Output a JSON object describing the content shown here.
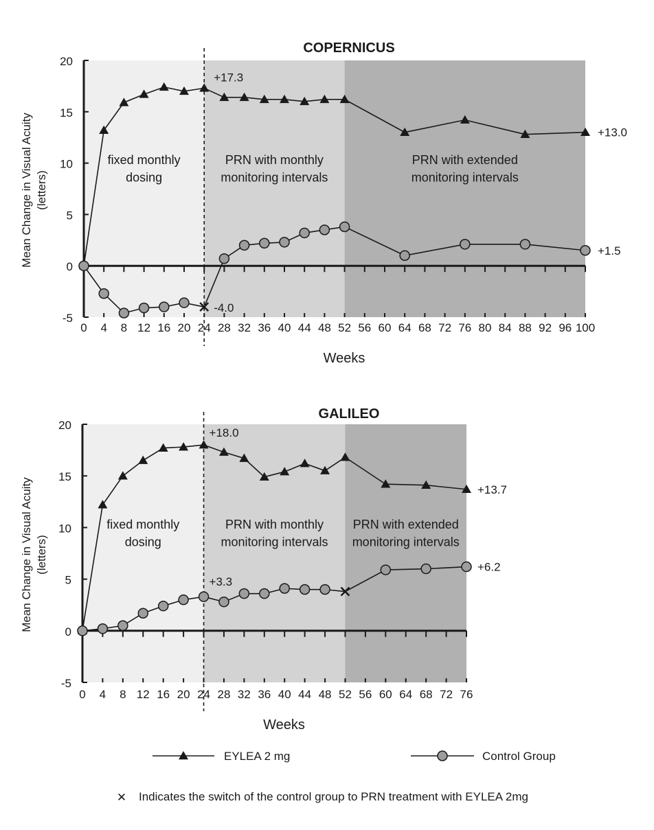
{
  "chart_data": [
    {
      "type": "line",
      "title": "COPERNICUS",
      "xlabel": "Weeks",
      "ylabel": "Mean Change in Visual Acuity",
      "ylabel_unit": "(letters)",
      "xlim": [
        0,
        100
      ],
      "ylim": [
        -5,
        20
      ],
      "yticks": [
        20,
        15,
        10,
        5,
        0,
        -5
      ],
      "xticks": [
        0,
        4,
        8,
        12,
        16,
        20,
        24,
        28,
        32,
        36,
        40,
        44,
        48,
        52,
        56,
        60,
        64,
        68,
        72,
        76,
        80,
        84,
        88,
        92,
        96,
        100
      ],
      "regions": [
        {
          "x0": 0,
          "x1": 24,
          "line1": "fixed monthly",
          "line2": "dosing",
          "color": "#efefef"
        },
        {
          "x0": 24,
          "x1": 52,
          "line1": "PRN with monthly",
          "line2": "monitoring intervals",
          "color": "#d3d3d3"
        },
        {
          "x0": 52,
          "x1": 100,
          "line1": "PRN with extended",
          "line2": "monitoring intervals",
          "color": "#b1b1b1"
        }
      ],
      "switch_week": 24,
      "series": [
        {
          "name": "EYLEA 2 mg",
          "marker": "triangle",
          "x": [
            0,
            4,
            8,
            12,
            16,
            20,
            24,
            28,
            32,
            36,
            40,
            44,
            48,
            52,
            64,
            76,
            88,
            100
          ],
          "values": [
            0,
            13.2,
            15.9,
            16.7,
            17.4,
            17.0,
            17.3,
            16.4,
            16.4,
            16.2,
            16.2,
            16.0,
            16.2,
            16.2,
            13.0,
            14.2,
            12.8,
            13.0
          ]
        },
        {
          "name": "Control Group",
          "marker": "circle",
          "x": [
            0,
            4,
            8,
            12,
            16,
            20,
            24,
            28,
            32,
            36,
            40,
            44,
            48,
            52,
            64,
            76,
            88,
            100
          ],
          "values": [
            0,
            -2.7,
            -4.6,
            -4.1,
            -4.0,
            -3.6,
            -4.0,
            0.7,
            2.0,
            2.2,
            2.3,
            3.2,
            3.5,
            3.8,
            1.0,
            2.1,
            2.1,
            1.5
          ]
        }
      ],
      "switch_points": [
        {
          "x": 24,
          "y": -4.0
        }
      ],
      "annotations": [
        {
          "text": "+17.3",
          "x": 24,
          "y": 17.3
        },
        {
          "text": "-4.0",
          "x": 24,
          "y": -4.0
        },
        {
          "text": "+13.0",
          "x": 100,
          "y": 13.0
        },
        {
          "text": "+1.5",
          "x": 100,
          "y": 1.5
        }
      ]
    },
    {
      "type": "line",
      "title": "GALILEO",
      "xlabel": "Weeks",
      "ylabel": "Mean Change in Visual Acuity",
      "ylabel_unit": "(letters)",
      "xlim": [
        0,
        76
      ],
      "ylim": [
        -5,
        20
      ],
      "yticks": [
        20,
        15,
        10,
        5,
        0,
        -5
      ],
      "xticks": [
        0,
        4,
        8,
        12,
        16,
        20,
        24,
        28,
        32,
        36,
        40,
        44,
        48,
        52,
        56,
        60,
        64,
        68,
        72,
        76
      ],
      "regions": [
        {
          "x0": 0,
          "x1": 24,
          "line1": "fixed monthly",
          "line2": "dosing",
          "color": "#efefef"
        },
        {
          "x0": 24,
          "x1": 52,
          "line1": "PRN with monthly",
          "line2": "monitoring intervals",
          "color": "#d3d3d3"
        },
        {
          "x0": 52,
          "x1": 76,
          "line1": "PRN with extended",
          "line2": "monitoring intervals",
          "color": "#b1b1b1"
        }
      ],
      "switch_week": 24,
      "series": [
        {
          "name": "EYLEA 2 mg",
          "marker": "triangle",
          "x": [
            0,
            4,
            8,
            12,
            16,
            20,
            24,
            28,
            32,
            36,
            40,
            44,
            48,
            52,
            60,
            68,
            76
          ],
          "values": [
            0,
            12.2,
            15.0,
            16.5,
            17.7,
            17.8,
            18.0,
            17.3,
            16.7,
            14.9,
            15.4,
            16.2,
            15.5,
            16.8,
            14.2,
            14.1,
            13.7
          ]
        },
        {
          "name": "Control Group",
          "marker": "circle",
          "x": [
            0,
            4,
            8,
            12,
            16,
            20,
            24,
            28,
            32,
            36,
            40,
            44,
            48,
            52,
            60,
            68,
            76
          ],
          "values": [
            0,
            0.2,
            0.5,
            1.7,
            2.4,
            3.0,
            3.3,
            2.8,
            3.6,
            3.6,
            4.1,
            4.0,
            4.0,
            3.8,
            5.9,
            6.0,
            6.2
          ]
        }
      ],
      "switch_points": [
        {
          "x": 52,
          "y": 3.8
        }
      ],
      "annotations": [
        {
          "text": "+18.0",
          "x": 24,
          "y": 18.0
        },
        {
          "text": "+3.3",
          "x": 24,
          "y": 3.3
        },
        {
          "text": "+13.7",
          "x": 76,
          "y": 13.7
        },
        {
          "text": "+6.2",
          "x": 76,
          "y": 6.2
        }
      ]
    }
  ],
  "legend": {
    "items": [
      {
        "label": "EYLEA 2 mg",
        "marker": "triangle"
      },
      {
        "label": "Control Group",
        "marker": "circle"
      }
    ],
    "footnote_symbol": "✕",
    "footnote": "Indicates the switch of the control group to PRN treatment with EYLEA 2mg"
  },
  "colors": {
    "line": "#1a1a1a",
    "circle_fill": "#9d9d9d"
  }
}
